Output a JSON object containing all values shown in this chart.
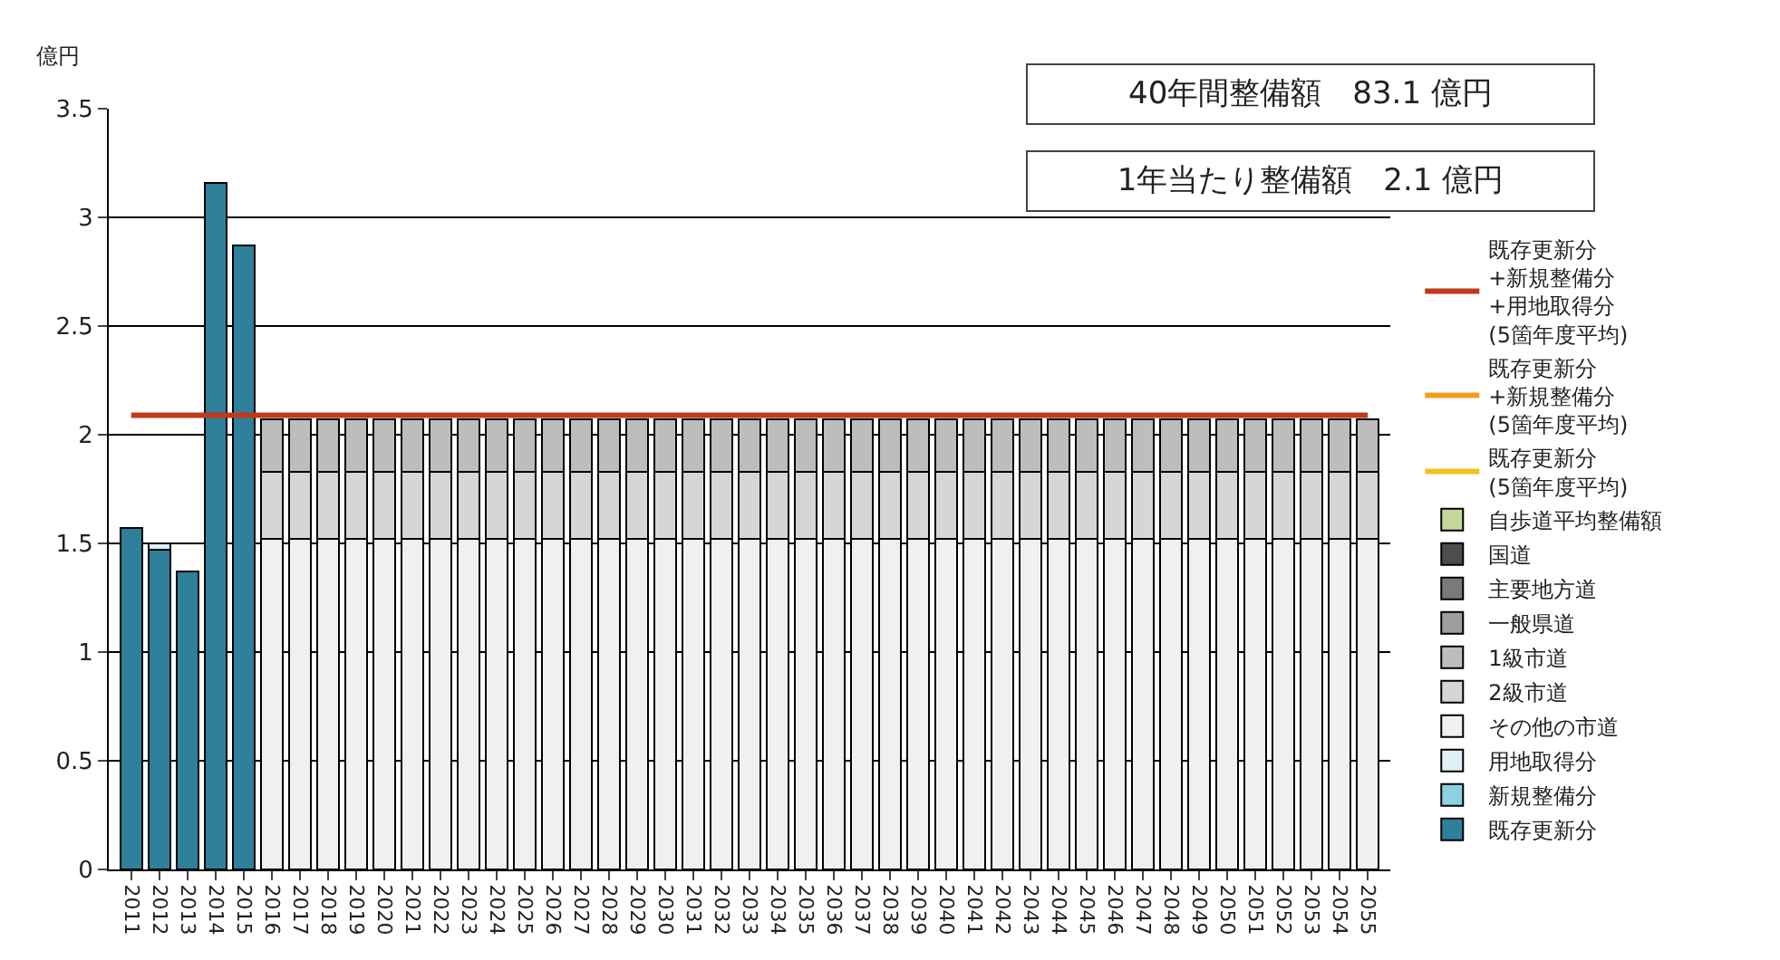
{
  "chart_data": {
    "type": "bar",
    "stacked": true,
    "ylabel": "億円",
    "ylim": [
      0,
      3.5
    ],
    "yticks": [
      0,
      0.5,
      1,
      1.5,
      2,
      2.5,
      3,
      3.5
    ],
    "grid": "y",
    "legend": "right",
    "categories": [
      "2011",
      "2012",
      "2013",
      "2014",
      "2015",
      "2016",
      "2017",
      "2018",
      "2019",
      "2020",
      "2021",
      "2022",
      "2023",
      "2024",
      "2025",
      "2026",
      "2027",
      "2028",
      "2029",
      "2030",
      "2031",
      "2032",
      "2033",
      "2034",
      "2035",
      "2036",
      "2037",
      "2038",
      "2039",
      "2040",
      "2041",
      "2042",
      "2043",
      "2044",
      "2045",
      "2046",
      "2047",
      "2048",
      "2049",
      "2050",
      "2051",
      "2052",
      "2053",
      "2054",
      "2055"
    ],
    "annotations": [
      "40年間整備額　83.1 億円",
      "1年当たり整備額　2.1 億円"
    ],
    "series": [
      {
        "name": "既存更新分",
        "color": "#2e7f9a",
        "values": [
          1.57,
          1.47,
          1.37,
          3.16,
          2.87,
          null,
          null,
          null,
          null,
          null,
          null,
          null,
          null,
          null,
          null,
          null,
          null,
          null,
          null,
          null,
          null,
          null,
          null,
          null,
          null,
          null,
          null,
          null,
          null,
          null,
          null,
          null,
          null,
          null,
          null,
          null,
          null,
          null,
          null,
          null,
          null,
          null,
          null,
          null,
          null
        ]
      },
      {
        "name": "新規整備分",
        "color": "#8ecfe3",
        "values": [
          null,
          null,
          null,
          null,
          null,
          null,
          null,
          null,
          null,
          null,
          null,
          null,
          null,
          null,
          null,
          null,
          null,
          null,
          null,
          null,
          null,
          null,
          null,
          null,
          null,
          null,
          null,
          null,
          null,
          null,
          null,
          null,
          null,
          null,
          null,
          null,
          null,
          null,
          null,
          null,
          null,
          null,
          null,
          null,
          null
        ]
      },
      {
        "name": "用地取得分",
        "color": "#dcf0f6",
        "values": [
          null,
          0.03,
          null,
          null,
          null,
          null,
          null,
          null,
          null,
          null,
          null,
          null,
          null,
          null,
          null,
          null,
          null,
          null,
          null,
          null,
          null,
          null,
          null,
          null,
          null,
          null,
          null,
          null,
          null,
          null,
          null,
          null,
          null,
          null,
          null,
          null,
          null,
          null,
          null,
          null,
          null,
          null,
          null,
          null,
          null
        ]
      },
      {
        "name": "その他の市道",
        "color": "#f0f0f0",
        "values": [
          null,
          null,
          null,
          null,
          null,
          1.52,
          1.52,
          1.52,
          1.52,
          1.52,
          1.52,
          1.52,
          1.52,
          1.52,
          1.52,
          1.52,
          1.52,
          1.52,
          1.52,
          1.52,
          1.52,
          1.52,
          1.52,
          1.52,
          1.52,
          1.52,
          1.52,
          1.52,
          1.52,
          1.52,
          1.52,
          1.52,
          1.52,
          1.52,
          1.52,
          1.52,
          1.52,
          1.52,
          1.52,
          1.52,
          1.52,
          1.52,
          1.52,
          1.52,
          1.52
        ]
      },
      {
        "name": "2級市道",
        "color": "#d6d6d6",
        "values": [
          null,
          null,
          null,
          null,
          null,
          0.31,
          0.31,
          0.31,
          0.31,
          0.31,
          0.31,
          0.31,
          0.31,
          0.31,
          0.31,
          0.31,
          0.31,
          0.31,
          0.31,
          0.31,
          0.31,
          0.31,
          0.31,
          0.31,
          0.31,
          0.31,
          0.31,
          0.31,
          0.31,
          0.31,
          0.31,
          0.31,
          0.31,
          0.31,
          0.31,
          0.31,
          0.31,
          0.31,
          0.31,
          0.31,
          0.31,
          0.31,
          0.31,
          0.31,
          0.31
        ]
      },
      {
        "name": "1級市道",
        "color": "#bdbdbd",
        "values": [
          null,
          null,
          null,
          null,
          null,
          0.24,
          0.24,
          0.24,
          0.24,
          0.24,
          0.24,
          0.24,
          0.24,
          0.24,
          0.24,
          0.24,
          0.24,
          0.24,
          0.24,
          0.24,
          0.24,
          0.24,
          0.24,
          0.24,
          0.24,
          0.24,
          0.24,
          0.24,
          0.24,
          0.24,
          0.24,
          0.24,
          0.24,
          0.24,
          0.24,
          0.24,
          0.24,
          0.24,
          0.24,
          0.24,
          0.24,
          0.24,
          0.24,
          0.24,
          0.24
        ]
      },
      {
        "name": "一般県道",
        "color": "#9e9e9e",
        "values": [
          null,
          null,
          null,
          null,
          null,
          null,
          null,
          null,
          null,
          null,
          null,
          null,
          null,
          null,
          null,
          null,
          null,
          null,
          null,
          null,
          null,
          null,
          null,
          null,
          null,
          null,
          null,
          null,
          null,
          null,
          null,
          null,
          null,
          null,
          null,
          null,
          null,
          null,
          null,
          null,
          null,
          null,
          null,
          null,
          null
        ]
      },
      {
        "name": "主要地方道",
        "color": "#7a7a7a",
        "values": [
          null,
          null,
          null,
          null,
          null,
          null,
          null,
          null,
          null,
          null,
          null,
          null,
          null,
          null,
          null,
          null,
          null,
          null,
          null,
          null,
          null,
          null,
          null,
          null,
          null,
          null,
          null,
          null,
          null,
          null,
          null,
          null,
          null,
          null,
          null,
          null,
          null,
          null,
          null,
          null,
          null,
          null,
          null,
          null,
          null
        ]
      },
      {
        "name": "国道",
        "color": "#4d4d4d",
        "values": [
          null,
          null,
          null,
          null,
          null,
          null,
          null,
          null,
          null,
          null,
          null,
          null,
          null,
          null,
          null,
          null,
          null,
          null,
          null,
          null,
          null,
          null,
          null,
          null,
          null,
          null,
          null,
          null,
          null,
          null,
          null,
          null,
          null,
          null,
          null,
          null,
          null,
          null,
          null,
          null,
          null,
          null,
          null,
          null,
          null
        ]
      },
      {
        "name": "自歩道平均整備額",
        "color": "#c5d89a",
        "values": [
          null,
          null,
          null,
          null,
          null,
          null,
          null,
          null,
          null,
          null,
          null,
          null,
          null,
          null,
          null,
          null,
          null,
          null,
          null,
          null,
          null,
          null,
          null,
          null,
          null,
          null,
          null,
          null,
          null,
          null,
          null,
          null,
          null,
          null,
          null,
          null,
          null,
          null,
          null,
          null,
          null,
          null,
          null,
          null,
          null
        ]
      },
      {
        "name": "既存更新分\n(5箇年度平均)",
        "type": "line",
        "color": "#f0c020",
        "values": [
          null,
          null,
          null,
          null,
          null,
          null,
          null,
          null,
          null,
          null,
          null,
          null,
          null,
          null,
          null,
          null,
          null,
          null,
          null,
          null,
          null,
          null,
          null,
          null,
          null,
          null,
          null,
          null,
          null,
          null,
          null,
          null,
          null,
          null,
          null,
          null,
          null,
          null,
          null,
          null,
          null,
          null,
          null,
          null,
          null
        ]
      },
      {
        "name": "既存更新分\n+新規整備分\n(5箇年度平均)",
        "type": "line",
        "color": "#f0a020",
        "values": [
          null,
          null,
          null,
          null,
          null,
          null,
          null,
          null,
          null,
          null,
          null,
          null,
          null,
          null,
          null,
          null,
          null,
          null,
          null,
          null,
          null,
          null,
          null,
          null,
          null,
          null,
          null,
          null,
          null,
          null,
          null,
          null,
          null,
          null,
          null,
          null,
          null,
          null,
          null,
          null,
          null,
          null,
          null,
          null,
          null
        ]
      },
      {
        "name": "既存更新分\n+新規整備分\n+用地取得分\n(5箇年度平均)",
        "type": "line",
        "color": "#c0391b",
        "values": [
          2.09,
          2.09,
          2.09,
          2.09,
          2.09,
          2.09,
          2.09,
          2.09,
          2.09,
          2.09,
          2.09,
          2.09,
          2.09,
          2.09,
          2.09,
          2.09,
          2.09,
          2.09,
          2.09,
          2.09,
          2.09,
          2.09,
          2.09,
          2.09,
          2.09,
          2.09,
          2.09,
          2.09,
          2.09,
          2.09,
          2.09,
          2.09,
          2.09,
          2.09,
          2.09,
          2.09,
          2.09,
          2.09,
          2.09,
          2.09,
          2.09,
          2.09,
          2.09,
          2.09,
          2.09
        ]
      }
    ]
  }
}
